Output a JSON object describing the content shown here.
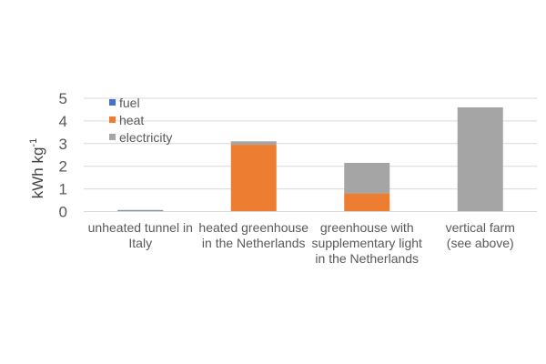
{
  "chart_data": {
    "type": "bar",
    "stacked": true,
    "categories": [
      [
        "unheated tunnel in",
        "Italy"
      ],
      [
        "heated greenhouse",
        "in the Netherlands"
      ],
      [
        "greenhouse with",
        "supplementary light",
        "in the Netherlands"
      ],
      [
        "vertical farm",
        "(see above)"
      ]
    ],
    "series": [
      {
        "name": "fuel",
        "color": "#4472C4",
        "values": [
          0.05,
          0,
          0,
          0
        ]
      },
      {
        "name": "heat",
        "color": "#ED7D31",
        "values": [
          0,
          2.95,
          0.8,
          0
        ]
      },
      {
        "name": "electricity",
        "color": "#A5A5A5",
        "values": [
          0.02,
          0.15,
          1.35,
          4.6
        ]
      }
    ],
    "ylabel": "kWh kg",
    "ylabel_superscript": "-1",
    "ylim": [
      0,
      5
    ],
    "yticks": [
      "0",
      "1",
      "2",
      "3",
      "4",
      "5"
    ],
    "grid": true,
    "legend_position": "top-left"
  }
}
